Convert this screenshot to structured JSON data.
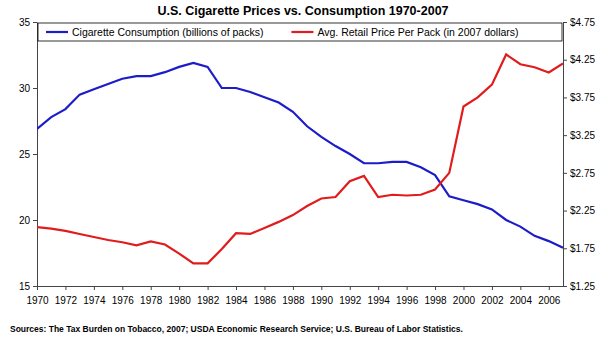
{
  "chart_data": {
    "type": "line",
    "title": "U.S. Cigarette Prices vs. Consumption 1970-2007",
    "annotations": [
      "Sources: The Tax Burden on Tobacco, 2007; USDA Economic Research Service; U.S. Bureau of Labor Statistics."
    ],
    "x": [
      1970,
      1971,
      1972,
      1973,
      1974,
      1975,
      1976,
      1977,
      1978,
      1979,
      1980,
      1981,
      1982,
      1983,
      1984,
      1985,
      1986,
      1987,
      1988,
      1989,
      1990,
      1991,
      1992,
      1993,
      1994,
      1995,
      1996,
      1997,
      1998,
      1999,
      2000,
      2001,
      2002,
      2003,
      2004,
      2005,
      2006,
      2007
    ],
    "xlim": [
      1970,
      2007
    ],
    "xticks": [
      1970,
      1972,
      1974,
      1976,
      1978,
      1980,
      1982,
      1984,
      1986,
      1988,
      1990,
      1992,
      1994,
      1996,
      1998,
      2000,
      2002,
      2004,
      2006
    ],
    "ylim": [
      15,
      35
    ],
    "yticks": [
      15,
      20,
      25,
      30,
      35
    ],
    "y2lim": [
      1.25,
      4.75
    ],
    "y2ticks": [
      {
        "value": 1.25,
        "label": "$1.25"
      },
      {
        "value": 1.75,
        "label": "$1.75"
      },
      {
        "value": 2.25,
        "label": "$2.25"
      },
      {
        "value": 2.75,
        "label": "$2.75"
      },
      {
        "value": 3.25,
        "label": "$3.25"
      },
      {
        "value": 3.75,
        "label": "$3.75"
      },
      {
        "value": 4.25,
        "label": "$4.25"
      },
      {
        "value": 4.75,
        "label": "$4.75"
      }
    ],
    "grid": false,
    "legend": "top",
    "series": [
      {
        "name": "Cigarette Consumption (billions of packs)",
        "color": "#1c1cc8",
        "line_style": "solid",
        "values": [
          26.9,
          27.8,
          28.4,
          29.5,
          29.9,
          30.3,
          30.7,
          30.9,
          30.9,
          31.2,
          31.6,
          31.9,
          31.6,
          30.0,
          30.0,
          29.7,
          29.3,
          28.9,
          28.2,
          27.1,
          26.3,
          25.6,
          25.0,
          24.3,
          24.3,
          24.4,
          24.4,
          24.0,
          23.4,
          21.8,
          21.5,
          21.2,
          20.8,
          20.0,
          19.5,
          18.8,
          18.4,
          17.9
        ]
      },
      {
        "name": "Avg. Retail Price Per Pack (in 2007 dollars)",
        "color": "#e01c1c",
        "line_style": "solid",
        "axis": "y2",
        "values": [
          2.03,
          2.01,
          1.98,
          1.94,
          1.9,
          1.86,
          1.83,
          1.79,
          1.84,
          1.8,
          1.68,
          1.55,
          1.55,
          1.74,
          1.95,
          1.94,
          2.02,
          2.1,
          2.19,
          2.31,
          2.41,
          2.43,
          2.64,
          2.71,
          2.43,
          2.46,
          2.45,
          2.46,
          2.53,
          2.75,
          3.63,
          3.75,
          3.92,
          4.32,
          4.19,
          4.15,
          4.08,
          4.2
        ]
      }
    ]
  }
}
